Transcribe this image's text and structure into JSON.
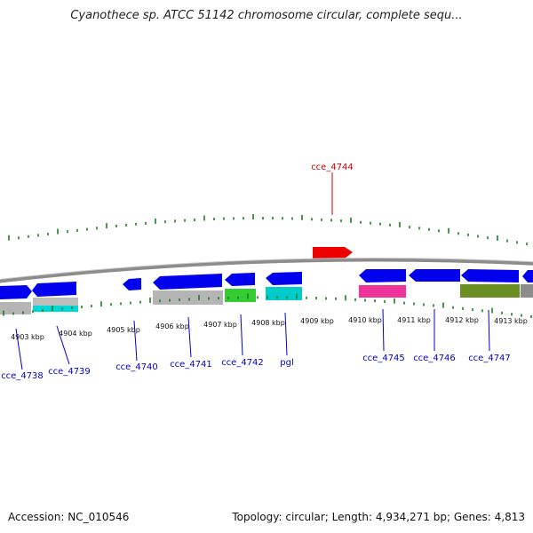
{
  "title": "Cyanothece sp. ATCC 51142 chromosome circular, complete sequ...",
  "footer": {
    "accession": "Accession: NC_010546",
    "summary": "Topology: circular; Length: 4,934,271 bp; Genes: 4,813"
  },
  "colors": {
    "backbone": "#8c8c8c",
    "tick": "#1e7d1e",
    "forward_gene": "#0000ee",
    "label_blue": "#0000cc",
    "label_red": "#cc0000",
    "reverse_gene": "#ee0000"
  },
  "kbp_labels": [
    "4903 kbp",
    "4904 kbp",
    "4905 kbp",
    "4906 kbp",
    "4907 kbp",
    "4908 kbp",
    "4909 kbp",
    "4910 kbp",
    "4911 kbp",
    "4912 kbp",
    "4913 kbp"
  ],
  "gene_labels": {
    "cce_4744": "cce_4744",
    "cce_4738": "cce_4738",
    "cce_4739": "cce_4739",
    "cce_4740": "cce_4740",
    "cce_4741": "cce_4741",
    "cce_4742": "cce_4742",
    "pgl": "pgl",
    "cce_4745": "cce_4745",
    "cce_4746": "cce_4746",
    "cce_4747": "cce_4747"
  }
}
